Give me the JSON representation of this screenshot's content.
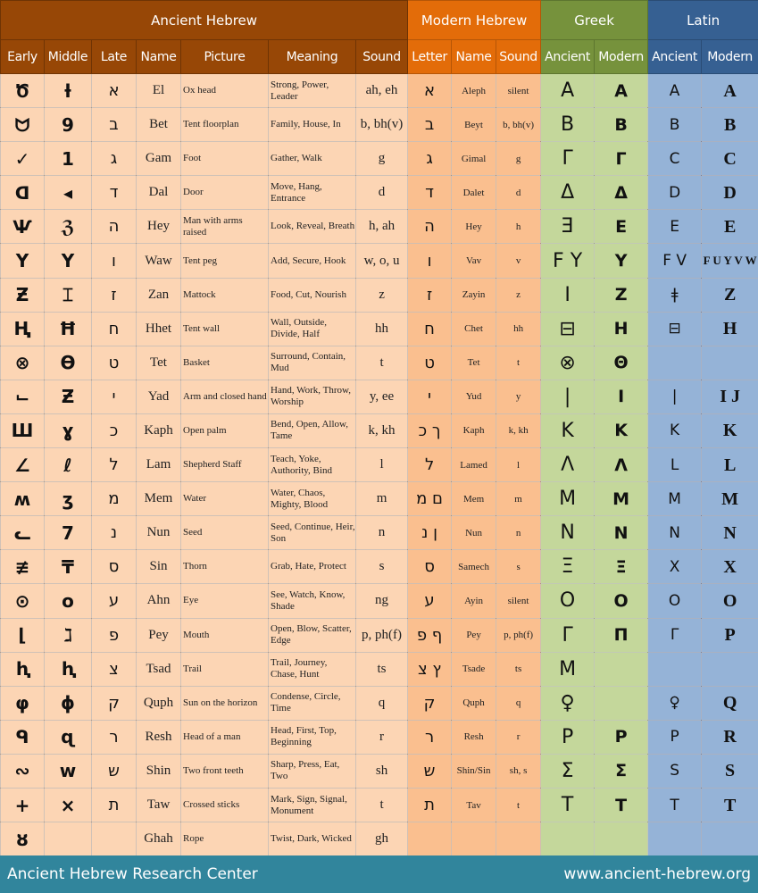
{
  "headers": {
    "groups": [
      "Ancient Hebrew",
      "Modern Hebrew",
      "Greek",
      "Latin"
    ],
    "columns": [
      "Early",
      "Middle",
      "Late",
      "Name",
      "Picture",
      "Meaning",
      "Sound",
      "Letter",
      "Name",
      "Sound",
      "Ancient",
      "Modern",
      "Ancient",
      "Modern"
    ]
  },
  "colors": {
    "ancient_header": "#974706",
    "ancient_body": "#fcd5b4",
    "modern_header": "#e36c09",
    "modern_body": "#fabf8f",
    "greek_header": "#76923c",
    "greek_body": "#c4d79b",
    "latin_header": "#366092",
    "latin_body": "#95b3d7",
    "footer": "#31859c"
  },
  "rows": [
    {
      "early": "Ծ",
      "middle": "ƚ",
      "late": "א",
      "name": "El",
      "picture": "Ox head",
      "meaning": "Strong, Power, Leader",
      "sound": "ah, eh",
      "letter": "א",
      "mname": "Aleph",
      "msound": "silent",
      "gan": "A",
      "gmod": "Α",
      "lan": "A",
      "lmod": "A"
    },
    {
      "early": "ᗢ",
      "middle": "9",
      "late": "ב",
      "name": "Bet",
      "picture": "Tent floorplan",
      "meaning": "Family, House, In",
      "sound": "b, bh(v)",
      "letter": "ב",
      "mname": "Beyt",
      "msound": "b, bh(v)",
      "gan": "B",
      "gmod": "Β",
      "lan": "B",
      "lmod": "B"
    },
    {
      "early": "✓",
      "middle": "1",
      "late": "ג",
      "name": "Gam",
      "picture": "Foot",
      "meaning": "Gather, Walk",
      "sound": "g",
      "letter": "ג",
      "mname": "Gimal",
      "msound": "g",
      "gan": "Γ",
      "gmod": "Γ",
      "lan": "C",
      "lmod": "C"
    },
    {
      "early": "ᗡ",
      "middle": "◂",
      "late": "ד",
      "name": "Dal",
      "picture": "Door",
      "meaning": "Move, Hang, Entrance",
      "sound": "d",
      "letter": "ד",
      "mname": "Dalet",
      "msound": "d",
      "gan": "Δ",
      "gmod": "Δ",
      "lan": "D",
      "lmod": "D"
    },
    {
      "early": "Ѱ",
      "middle": "ℨ",
      "late": "ה",
      "name": "Hey",
      "picture": "Man with arms raised",
      "meaning": "Look, Reveal, Breath",
      "sound": "h, ah",
      "letter": "ה",
      "mname": "Hey",
      "msound": "h",
      "gan": "Ǝ",
      "gmod": "Ε",
      "lan": "E",
      "lmod": "E"
    },
    {
      "early": "Y",
      "middle": "Y",
      "late": "ו",
      "name": "Waw",
      "picture": "Tent peg",
      "meaning": "Add, Secure, Hook",
      "sound": "w, o, u",
      "letter": "ו",
      "mname": "Vav",
      "msound": "v",
      "gan": "Ϝ Υ",
      "gmod": "Υ",
      "lan": "Ϝ V",
      "lmod": "F U Y V W"
    },
    {
      "early": "Ƶ",
      "middle": "⌶",
      "late": "ז",
      "name": "Zan",
      "picture": "Mattock",
      "meaning": "Food, Cut, Nourish",
      "sound": "z",
      "letter": "ז",
      "mname": "Zayin",
      "msound": "z",
      "gan": "I",
      "gmod": "Ζ",
      "lan": "ǂ",
      "lmod": "Z"
    },
    {
      "early": "Ⱨ",
      "middle": "Ħ",
      "late": "ח",
      "name": "Hhet",
      "picture": "Tent wall",
      "meaning": "Wall, Outside, Divide, Half",
      "sound": "hh",
      "letter": "ח",
      "mname": "Chet",
      "msound": "hh",
      "gan": "⊟",
      "gmod": "Η",
      "lan": "⊟",
      "lmod": "H"
    },
    {
      "early": "⊗",
      "middle": "ϴ",
      "late": "ט",
      "name": "Tet",
      "picture": "Basket",
      "meaning": "Surround, Contain, Mud",
      "sound": "t",
      "letter": "ט",
      "mname": "Tet",
      "msound": "t",
      "gan": "⊗",
      "gmod": "Θ",
      "lan": "",
      "lmod": ""
    },
    {
      "early": "⌙",
      "middle": "Ƶ",
      "late": "י",
      "name": "Yad",
      "picture": "Arm and closed hand",
      "meaning": "Hand, Work, Throw, Worship",
      "sound": "y, ee",
      "letter": "י",
      "mname": "Yud",
      "msound": "y",
      "gan": "|",
      "gmod": "Ι",
      "lan": "|",
      "lmod": "I J"
    },
    {
      "early": "Ш",
      "middle": "ɣ",
      "late": "כ",
      "name": "Kaph",
      "picture": "Open palm",
      "meaning": "Bend, Open, Allow, Tame",
      "sound": "k, kh",
      "letter": "ך כ",
      "mname": "Kaph",
      "msound": "k, kh",
      "gan": "K",
      "gmod": "Κ",
      "lan": "K",
      "lmod": "K"
    },
    {
      "early": "∠",
      "middle": "ℓ",
      "late": "ל",
      "name": "Lam",
      "picture": "Shepherd Staff",
      "meaning": "Teach, Yoke, Authority, Bind",
      "sound": "l",
      "letter": "ל",
      "mname": "Lamed",
      "msound": "l",
      "gan": "Λ",
      "gmod": "Λ",
      "lan": "L",
      "lmod": "L"
    },
    {
      "early": "ʍ",
      "middle": "ӡ",
      "late": "מ",
      "name": "Mem",
      "picture": "Water",
      "meaning": "Water, Chaos, Mighty, Blood",
      "sound": "m",
      "letter": "ם מ",
      "mname": "Mem",
      "msound": "m",
      "gan": "M",
      "gmod": "Μ",
      "lan": "M",
      "lmod": "M"
    },
    {
      "early": "ᓚ",
      "middle": "7",
      "late": "נ",
      "name": "Nun",
      "picture": "Seed",
      "meaning": "Seed, Continue, Heir, Son",
      "sound": "n",
      "letter": "ן נ",
      "mname": "Nun",
      "msound": "n",
      "gan": "N",
      "gmod": "Ν",
      "lan": "N",
      "lmod": "N"
    },
    {
      "early": "≢",
      "middle": "₸",
      "late": "ס",
      "name": "Sin",
      "picture": "Thorn",
      "meaning": "Grab, Hate, Protect",
      "sound": "s",
      "letter": "ס",
      "mname": "Samech",
      "msound": "s",
      "gan": "Ξ",
      "gmod": "Ξ",
      "lan": "X",
      "lmod": "X"
    },
    {
      "early": "⊙",
      "middle": "o",
      "late": "ע",
      "name": "Ahn",
      "picture": "Eye",
      "meaning": "See, Watch, Know, Shade",
      "sound": "ng",
      "letter": "ע",
      "mname": "Ayin",
      "msound": "silent",
      "gan": "O",
      "gmod": "Ο",
      "lan": "O",
      "lmod": "O"
    },
    {
      "early": "⌊",
      "middle": "ℷ",
      "late": "פ",
      "name": "Pey",
      "picture": "Mouth",
      "meaning": "Open, Blow, Scatter, Edge",
      "sound": "p, ph(f)",
      "letter": "ף פ",
      "mname": "Pey",
      "msound": "p, ph(f)",
      "gan": "Γ",
      "gmod": "Π",
      "lan": "Γ",
      "lmod": "P"
    },
    {
      "early": "ⱨ",
      "middle": "ⱨ",
      "late": "צ",
      "name": "Tsad",
      "picture": "Trail",
      "meaning": "Trail, Journey, Chase, Hunt",
      "sound": "ts",
      "letter": "ץ צ",
      "mname": "Tsade",
      "msound": "ts",
      "gan": "M",
      "gmod": "",
      "lan": "",
      "lmod": ""
    },
    {
      "early": "φ",
      "middle": "ϕ",
      "late": "ק",
      "name": "Quph",
      "picture": "Sun on the horizon",
      "meaning": "Condense, Circle, Time",
      "sound": "q",
      "letter": "ק",
      "mname": "Quph",
      "msound": "q",
      "gan": "♀",
      "gmod": "",
      "lan": "♀",
      "lmod": "Q"
    },
    {
      "early": "ᑫ",
      "middle": "ɋ",
      "late": "ר",
      "name": "Resh",
      "picture": "Head of a man",
      "meaning": "Head, First, Top, Beginning",
      "sound": "r",
      "letter": "ר",
      "mname": "Resh",
      "msound": "r",
      "gan": "P",
      "gmod": "Ρ",
      "lan": "P",
      "lmod": "R"
    },
    {
      "early": "∾",
      "middle": "w",
      "late": "ש",
      "name": "Shin",
      "picture": "Two front teeth",
      "meaning": "Sharp, Press, Eat, Two",
      "sound": "sh",
      "letter": "ש",
      "mname": "Shin/Sin",
      "msound": "sh, s",
      "gan": "Σ",
      "gmod": "Σ",
      "lan": "S",
      "lmod": "S"
    },
    {
      "early": "+",
      "middle": "×",
      "late": "ת",
      "name": "Taw",
      "picture": "Crossed sticks",
      "meaning": "Mark, Sign, Signal, Monument",
      "sound": "t",
      "letter": "ת",
      "mname": "Tav",
      "msound": "t",
      "gan": "T",
      "gmod": "Τ",
      "lan": "T",
      "lmod": "T"
    },
    {
      "early": "ȣ",
      "middle": "",
      "late": "",
      "name": "Ghah",
      "picture": "Rope",
      "meaning": "Twist, Dark, Wicked",
      "sound": "gh",
      "letter": "",
      "mname": "",
      "msound": "",
      "gan": "",
      "gmod": "",
      "lan": "",
      "lmod": ""
    }
  ],
  "footer": {
    "left": "Ancient Hebrew Research Center",
    "right": "www.ancient-hebrew.org"
  }
}
